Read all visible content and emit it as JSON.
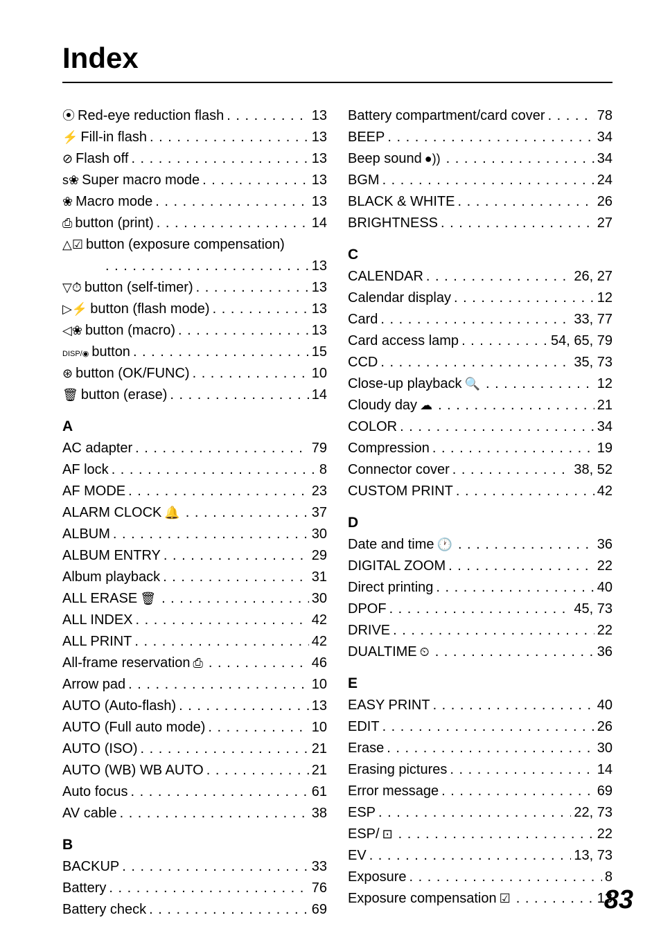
{
  "title": "Index",
  "pageNumber": "83",
  "left": {
    "symbols": [
      {
        "icon": "⦿",
        "label": "Red-eye reduction flash",
        "pages": "13"
      },
      {
        "icon": "⚡",
        "label": "Fill-in flash",
        "pages": "13"
      },
      {
        "icon": "⊘",
        "label": "Flash off",
        "pages": "13"
      },
      {
        "icon": "s❀",
        "label": "Super macro mode",
        "pages": "13"
      },
      {
        "icon": "❀",
        "label": "Macro mode",
        "pages": "13"
      },
      {
        "icon": "⎙",
        "label": "button (print)",
        "pages": "14"
      },
      {
        "icon": "△☑",
        "label": "button (exposure compensation)",
        "pages": "13",
        "wrap": true
      },
      {
        "icon": "▽⏱",
        "label": "button (self-timer)",
        "pages": "13"
      },
      {
        "icon": "▷⚡",
        "label": "button (flash mode)",
        "pages": "13"
      },
      {
        "icon": "◁❀",
        "label": "button (macro)",
        "pages": "13"
      },
      {
        "icon": "DISP/◉",
        "label": "button",
        "pages": "15",
        "smallicon": true
      },
      {
        "icon": "⊛",
        "label": "button (OK/FUNC)",
        "pages": "10"
      },
      {
        "icon": "🗑",
        "label": "button (erase)",
        "pages": "14"
      }
    ],
    "sections": [
      {
        "head": "A",
        "items": [
          {
            "label": "AC adapter",
            "pages": "79"
          },
          {
            "label": "AF lock",
            "pages": "8"
          },
          {
            "label": "AF MODE",
            "pages": "23"
          },
          {
            "label": "ALARM CLOCK",
            "suffixIcon": "🔔",
            "pages": "37"
          },
          {
            "label": "ALBUM",
            "pages": "30"
          },
          {
            "label": "ALBUM ENTRY",
            "pages": "29"
          },
          {
            "label": "Album playback",
            "pages": "31"
          },
          {
            "label": "ALL ERASE",
            "suffixIcon": "🗑",
            "pages": "30"
          },
          {
            "label": "ALL INDEX",
            "pages": "42"
          },
          {
            "label": "ALL PRINT",
            "pages": "42"
          },
          {
            "label": "All-frame reservation",
            "suffixIcon": "⎙",
            "pages": "46"
          },
          {
            "label": "Arrow pad",
            "pages": "10"
          },
          {
            "label": "AUTO (Auto-flash)",
            "pages": "13"
          },
          {
            "label": "AUTO (Full auto mode)",
            "pages": "10"
          },
          {
            "label": "AUTO (ISO)",
            "pages": "21"
          },
          {
            "label": "AUTO (WB) WB AUTO",
            "pages": "21"
          },
          {
            "label": "Auto focus",
            "pages": "61"
          },
          {
            "label": "AV cable",
            "pages": "38"
          }
        ]
      },
      {
        "head": "B",
        "items": [
          {
            "label": "BACKUP",
            "pages": "33"
          },
          {
            "label": "Battery",
            "pages": "76"
          },
          {
            "label": "Battery check",
            "pages": "69"
          }
        ]
      }
    ]
  },
  "right": {
    "preItems": [
      {
        "label": "Battery compartment/card cover",
        "pages": "78"
      },
      {
        "label": "BEEP",
        "pages": "34"
      },
      {
        "label": "Beep sound",
        "suffixIcon": "●))",
        "pages": "34"
      },
      {
        "label": "BGM",
        "pages": "24"
      },
      {
        "label": "BLACK & WHITE",
        "pages": "26"
      },
      {
        "label": "BRIGHTNESS",
        "pages": "27"
      }
    ],
    "sections": [
      {
        "head": "C",
        "items": [
          {
            "label": "CALENDAR",
            "pages": "26, 27"
          },
          {
            "label": "Calendar display",
            "pages": "12"
          },
          {
            "label": "Card",
            "pages": "33, 77"
          },
          {
            "label": "Card access lamp",
            "pages": "54, 65, 79"
          },
          {
            "label": "CCD",
            "pages": "35, 73"
          },
          {
            "label": "Close-up playback",
            "suffixIcon": "🔍",
            "pages": "12"
          },
          {
            "label": "Cloudy day",
            "suffixIcon": "☁",
            "pages": "21"
          },
          {
            "label": "COLOR",
            "pages": "34"
          },
          {
            "label": "Compression",
            "pages": "19"
          },
          {
            "label": "Connector cover",
            "pages": "38, 52"
          },
          {
            "label": "CUSTOM PRINT",
            "pages": "42"
          }
        ]
      },
      {
        "head": "D",
        "items": [
          {
            "label": "Date and time",
            "suffixIcon": "🕐",
            "pages": "36"
          },
          {
            "label": "DIGITAL ZOOM",
            "pages": "22"
          },
          {
            "label": "Direct printing",
            "pages": "40"
          },
          {
            "label": "DPOF",
            "pages": "45, 73"
          },
          {
            "label": "DRIVE",
            "pages": "22"
          },
          {
            "label": "DUALTIME",
            "suffixIcon": "⏲",
            "pages": "36"
          }
        ]
      },
      {
        "head": "E",
        "items": [
          {
            "label": "EASY PRINT",
            "pages": "40"
          },
          {
            "label": "EDIT",
            "pages": "26"
          },
          {
            "label": "Erase",
            "pages": "30"
          },
          {
            "label": "Erasing pictures",
            "pages": "14"
          },
          {
            "label": "Error message",
            "pages": "69"
          },
          {
            "label": "ESP",
            "pages": "22, 73"
          },
          {
            "label": "ESP/",
            "suffixIcon": "⊡",
            "pages": "22"
          },
          {
            "label": "EV",
            "pages": "13, 73"
          },
          {
            "label": "Exposure",
            "pages": "8"
          },
          {
            "label": "Exposure compensation",
            "suffixIcon": "☑",
            "pages": "13"
          }
        ]
      }
    ]
  }
}
